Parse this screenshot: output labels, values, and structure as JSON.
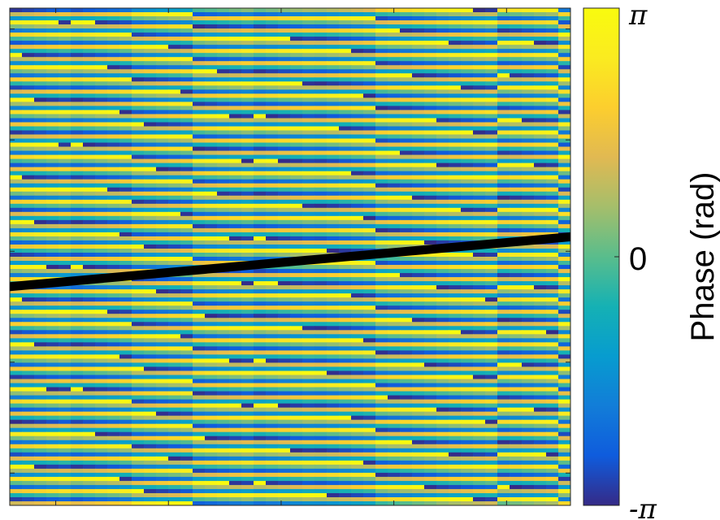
{
  "chart_data": {
    "type": "heatmap",
    "colormap": "parula",
    "value_range": [
      -3.14159,
      3.14159
    ],
    "grid": false,
    "x_ticks_labeled": false,
    "y_ticks_labeled": false,
    "stripes": {
      "orientation": "near-horizontal, slightly tilted upward to the right",
      "count_visible": 45,
      "phase_gradient_per_row": 0.98,
      "tilt_rows_across": 1.1
    },
    "overlay_line": {
      "color": "#000000",
      "x": [
        0.0,
        1.0
      ],
      "y": [
        0.56,
        0.46
      ]
    },
    "colorbar": {
      "label": "Phase (rad)",
      "location": "right",
      "ticks": [
        {
          "value": 3.14159,
          "label": "π"
        },
        {
          "value": 0,
          "label": "0"
        },
        {
          "value": -3.14159,
          "label": "-π"
        }
      ]
    }
  }
}
